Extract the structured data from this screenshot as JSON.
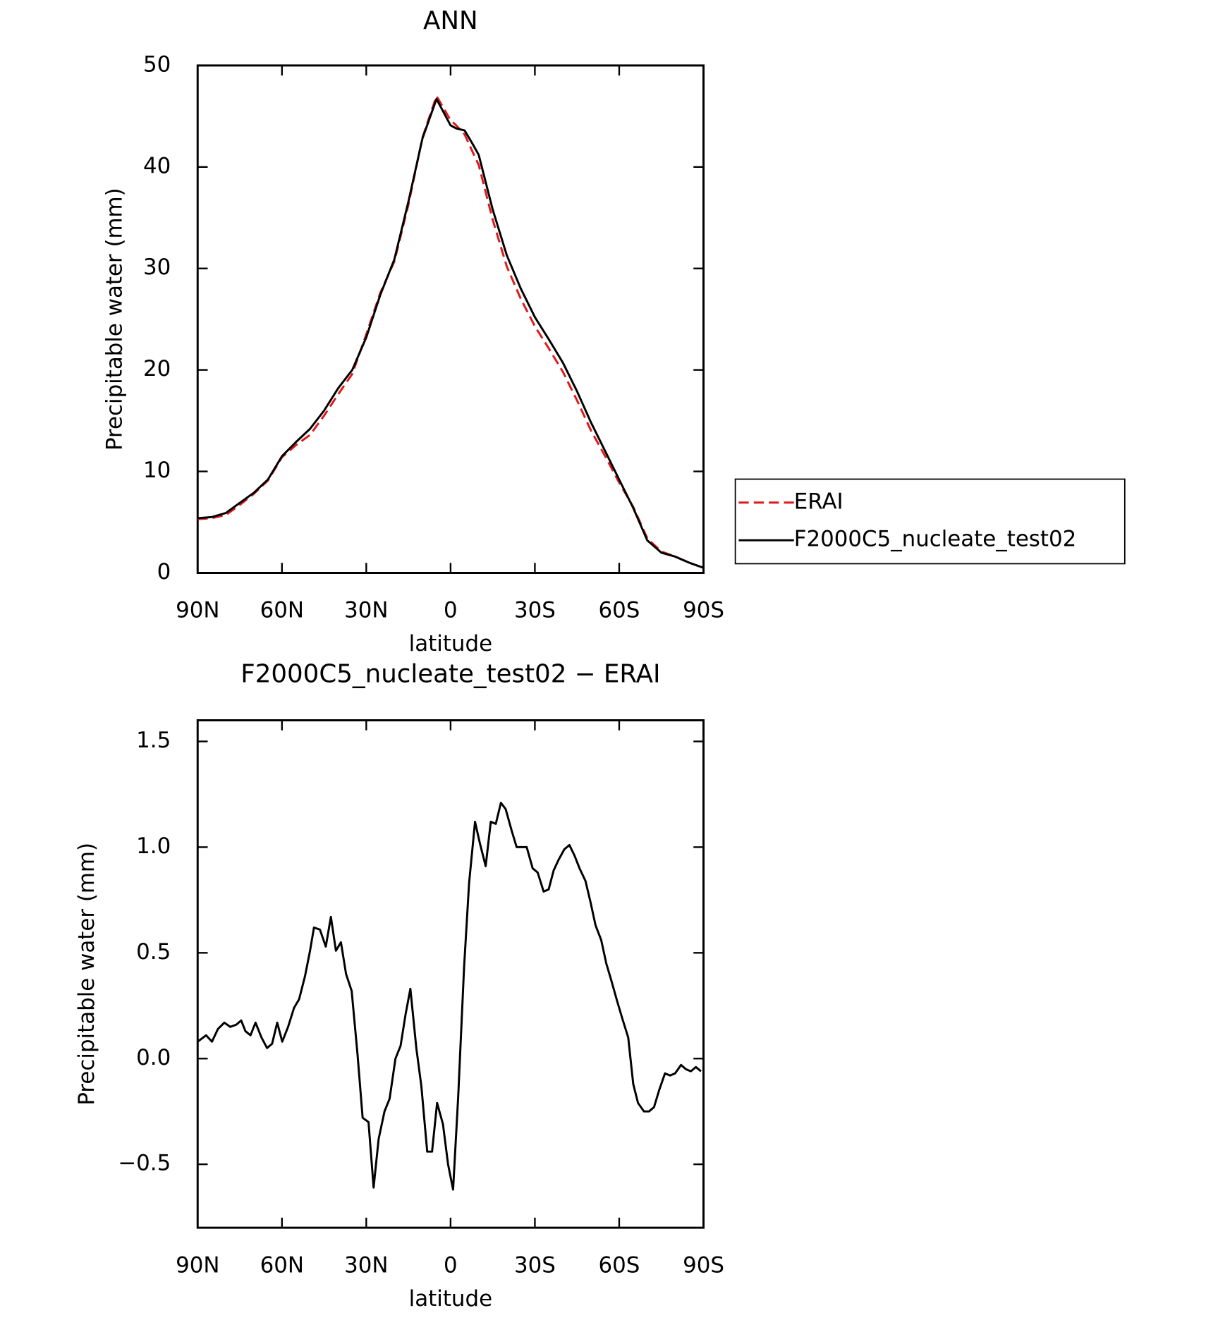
{
  "chart_data": [
    {
      "type": "line",
      "title": "ANN",
      "x_label": "latitude",
      "y_label": "Precipitable water (mm)",
      "x": [
        90,
        85,
        80,
        75,
        70,
        65,
        60,
        55,
        50,
        45,
        40,
        35,
        30,
        25,
        20,
        15,
        10,
        5,
        0,
        -2,
        -5,
        -8,
        -10,
        -15,
        -20,
        -25,
        -30,
        -35,
        -40,
        -45,
        -50,
        -55,
        -60,
        -65,
        -70,
        -75,
        -80,
        -85,
        -90
      ],
      "series": [
        {
          "name": "ERAI",
          "color": "#e0191b",
          "dash": "dashed",
          "values": [
            5.3,
            5.4,
            5.7,
            6.7,
            7.8,
            9.1,
            11.4,
            12.6,
            13.6,
            15.5,
            17.6,
            19.6,
            23.5,
            27.6,
            30.7,
            36.3,
            42.9,
            47.0,
            44.6,
            44.1,
            43.2,
            41.4,
            40.2,
            34.8,
            30.2,
            27.0,
            24.3,
            22.1,
            19.8,
            17.0,
            14.0,
            11.5,
            8.9,
            6.5,
            3.4,
            2.1,
            1.6,
            1.0,
            0.5
          ]
        },
        {
          "name": "F2000C5_nucleate_test02",
          "color": "#000000",
          "dash": "solid",
          "values": [
            5.4,
            5.5,
            5.9,
            6.9,
            7.9,
            9.2,
            11.5,
            12.9,
            14.2,
            16.0,
            18.2,
            20.0,
            23.2,
            27.4,
            30.9,
            36.6,
            42.8,
            46.7,
            44.1,
            43.8,
            43.6,
            42.2,
            41.2,
            35.8,
            31.3,
            28.0,
            25.2,
            23.0,
            20.7,
            17.9,
            14.8,
            12.0,
            9.2,
            6.4,
            3.2,
            2.0,
            1.6,
            1.0,
            0.5
          ]
        }
      ],
      "xlim": [
        90,
        -90
      ],
      "xticks": [
        {
          "value": 90,
          "label": "90N"
        },
        {
          "value": 60,
          "label": "60N"
        },
        {
          "value": 30,
          "label": "30N"
        },
        0,
        {
          "value": -30,
          "label": "30S"
        },
        {
          "value": -60,
          "label": "60S"
        },
        {
          "value": -90,
          "label": "90S"
        }
      ],
      "ylim": [
        0,
        50
      ],
      "yticks": [
        0,
        10,
        20,
        30,
        40,
        50
      ],
      "legend": "right"
    },
    {
      "type": "line",
      "title": "F2000C5_nucleate_test02 − ERAI",
      "x_label": "latitude",
      "y_label": "Precipitable water (mm)",
      "x": [
        90.0,
        87.0,
        84.9,
        82.8,
        80.5,
        78.4,
        76.3,
        74.5,
        73.0,
        71.2,
        69.4,
        67.3,
        65.3,
        63.5,
        61.7,
        59.9,
        57.8,
        55.7,
        53.9,
        51.8,
        50.0,
        48.6,
        46.5,
        44.4,
        42.6,
        40.8,
        39.0,
        37.2,
        35.2,
        33.1,
        31.3,
        29.2,
        27.4,
        25.6,
        23.5,
        21.7,
        19.6,
        17.8,
        16.0,
        14.3,
        12.2,
        10.4,
        8.3,
        6.6,
        4.8,
        2.7,
        0.9,
        -0.9,
        -2.7,
        -4.8,
        -6.6,
        -8.7,
        -10.4,
        -12.5,
        -14.3,
        -16.1,
        -17.9,
        -19.6,
        -21.7,
        -23.5,
        -25.3,
        -27.1,
        -29.2,
        -31.0,
        -33.1,
        -34.9,
        -36.7,
        -38.4,
        -40.5,
        -42.3,
        -44.1,
        -45.9,
        -48.0,
        -49.8,
        -51.6,
        -53.6,
        -55.4,
        -57.2,
        -59.3,
        -61.1,
        -63.2,
        -65.0,
        -66.7,
        -68.8,
        -70.6,
        -72.4,
        -74.2,
        -76.3,
        -78.1,
        -79.9,
        -82.0,
        -83.7,
        -85.5,
        -87.3,
        -89.1
      ],
      "values": [
        0.08,
        0.11,
        0.08,
        0.14,
        0.17,
        0.15,
        0.16,
        0.18,
        0.13,
        0.11,
        0.17,
        0.1,
        0.05,
        0.07,
        0.17,
        0.08,
        0.15,
        0.24,
        0.28,
        0.39,
        0.51,
        0.62,
        0.61,
        0.53,
        0.67,
        0.51,
        0.55,
        0.4,
        0.32,
        0.02,
        -0.28,
        -0.3,
        -0.61,
        -0.38,
        -0.25,
        -0.19,
        0.0,
        0.06,
        0.21,
        0.33,
        0.05,
        -0.13,
        -0.44,
        -0.44,
        -0.21,
        -0.31,
        -0.5,
        -0.62,
        -0.18,
        0.43,
        0.83,
        1.12,
        1.02,
        0.91,
        1.12,
        1.11,
        1.21,
        1.18,
        1.08,
        1.0,
        1.0,
        1.0,
        0.9,
        0.88,
        0.79,
        0.8,
        0.89,
        0.94,
        0.99,
        1.01,
        0.96,
        0.9,
        0.84,
        0.74,
        0.63,
        0.56,
        0.45,
        0.37,
        0.27,
        0.19,
        0.1,
        -0.12,
        -0.21,
        -0.25,
        -0.25,
        -0.23,
        -0.15,
        -0.07,
        -0.08,
        -0.07,
        -0.03,
        -0.05,
        -0.06,
        -0.04,
        -0.06
      ],
      "color": "#000000",
      "xlim": [
        90,
        -90
      ],
      "xticks": [
        {
          "value": 90,
          "label": "90N"
        },
        {
          "value": 60,
          "label": "60N"
        },
        {
          "value": 30,
          "label": "30N"
        },
        0,
        {
          "value": -30,
          "label": "30S"
        },
        {
          "value": -60,
          "label": "60S"
        },
        {
          "value": -90,
          "label": "90S"
        }
      ],
      "ylim": [
        -0.8,
        1.6
      ],
      "yticks": [
        {
          "value": -0.5,
          "label": "−0.5"
        },
        {
          "value": 0,
          "label": "0.0"
        },
        0.5,
        {
          "value": 1,
          "label": "1.0"
        },
        1.5
      ]
    }
  ]
}
